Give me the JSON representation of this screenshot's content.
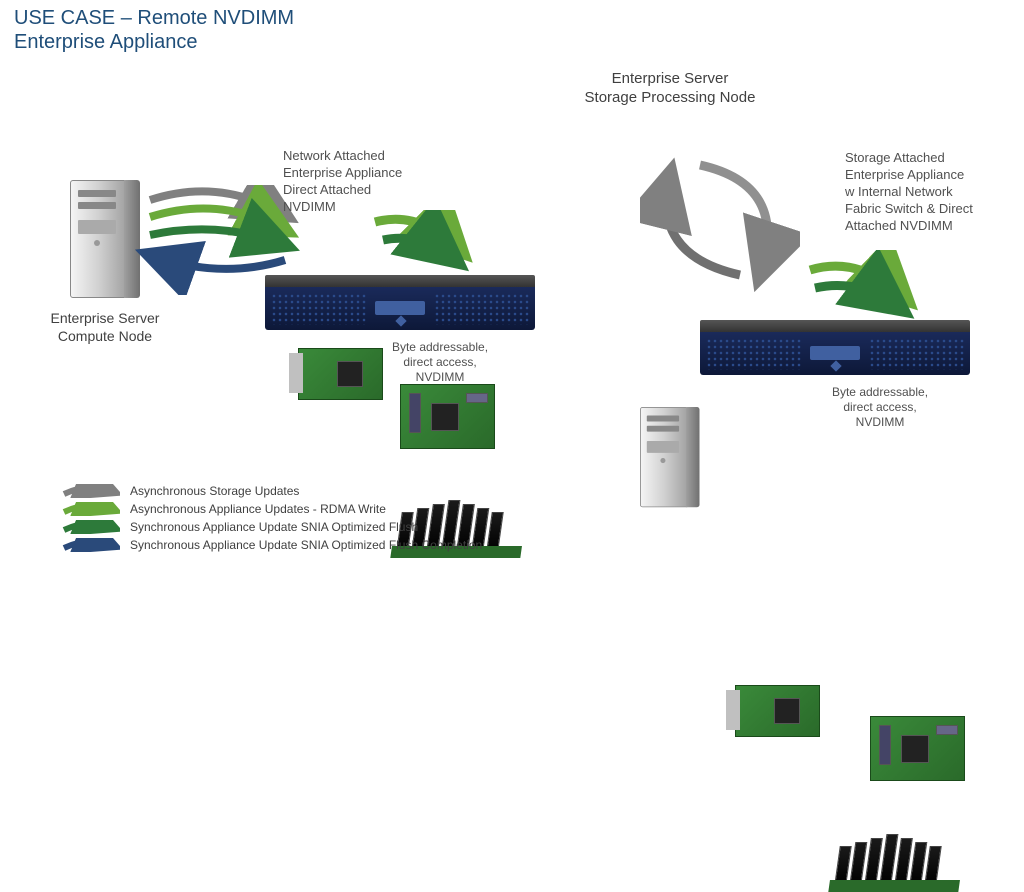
{
  "title_line1": "USE CASE – Remote NVDIMM",
  "title_line2": "Enterprise Appliance",
  "left": {
    "server_label": "Enterprise Server\nCompute Node",
    "appliance_desc": "Network Attached\nEnterprise Appliance\nDirect Attached\nNVDIMM",
    "nvdimm_caption": "Byte addressable,\ndirect access,\nNVDIMM"
  },
  "right": {
    "server_label": "Enterprise Server\nStorage Processing Node",
    "appliance_desc": "Storage Attached\nEnterprise Appliance\nw Internal Network\nFabric Switch & Direct\nAttached NVDIMM",
    "nvdimm_caption": "Byte addressable,\ndirect access,\nNVDIMM"
  },
  "legend": [
    {
      "text": "Asynchronous Storage Updates",
      "color_from": "#707070",
      "color_to": "#a0a0a0"
    },
    {
      "text": "Asynchronous Appliance Updates - RDMA Write",
      "color_from": "#2d6a2d",
      "color_to": "#6aaa3a"
    },
    {
      "text": "Synchronous Appliance Update SNIA Optimized Flush",
      "color_from": "#0d5a2d",
      "color_to": "#3a9a4a"
    },
    {
      "text": "Synchronous Appliance Update SNIA Optimized Flush Completion",
      "color_from": "#1f3a5a",
      "color_to": "#3a5a8a"
    }
  ],
  "colors": {
    "title": "#1f4e79",
    "rack_blue": "#13235a",
    "pcb_green": "#2a7a2a",
    "arrow_gray": "#808080",
    "arrow_green_light": "#6aaa3a",
    "arrow_green_dark": "#2d7a3a",
    "arrow_navy": "#2a4a7a"
  }
}
